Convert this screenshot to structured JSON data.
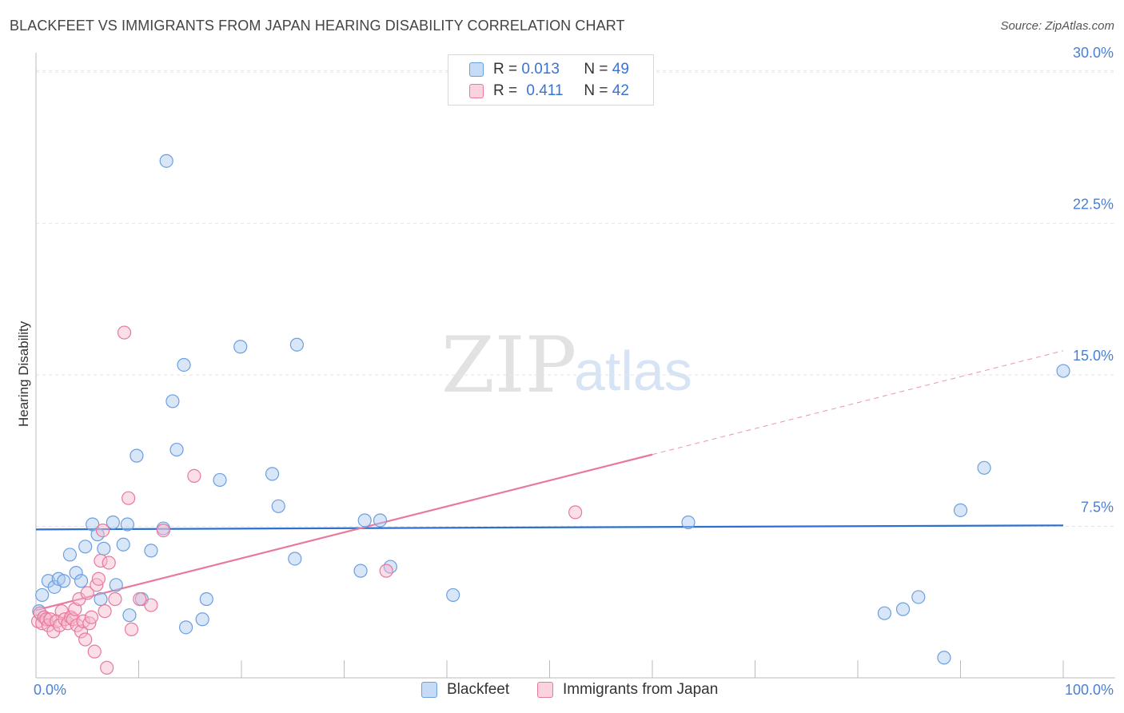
{
  "header": {
    "title": "BLACKFEET VS IMMIGRANTS FROM JAPAN HEARING DISABILITY CORRELATION CHART",
    "source": "Source: ZipAtlas.com"
  },
  "legend": {
    "rows": [
      {
        "r_label": "R =",
        "r_value": "0.013",
        "n_label": "N =",
        "n_value": "49",
        "color": "#a8c8f0"
      },
      {
        "r_label": "R =",
        "r_value": "0.411",
        "n_label": "N =",
        "n_value": "42",
        "color": "#f7b9cb"
      }
    ]
  },
  "bottom_legend": {
    "items": [
      {
        "label": "Blackfeet",
        "color": "#a8c8f0"
      },
      {
        "label": "Immigrants from Japan",
        "color": "#f7b9cb"
      }
    ]
  },
  "watermark": {
    "zip": "ZIP",
    "atlas": "atlas"
  },
  "chart_data": {
    "type": "scatter",
    "title": "BLACKFEET VS IMMIGRANTS FROM JAPAN HEARING DISABILITY CORRELATION CHART",
    "xlabel": "",
    "ylabel": "Hearing Disability",
    "xlim": [
      0,
      100
    ],
    "ylim": [
      0,
      30.8
    ],
    "x_tick_labels": [
      "0.0%",
      "100.0%"
    ],
    "y_ticks": [
      7.5,
      15.0,
      22.5,
      30.0
    ],
    "y_tick_labels": [
      "7.5%",
      "15.0%",
      "22.5%",
      "30.0%"
    ],
    "grid": true,
    "series": [
      {
        "name": "Blackfeet",
        "color": "#6b9fe0",
        "fill": "#a8c8f0",
        "r": "0.013",
        "n": "49",
        "trend": {
          "x0": 0,
          "y0": 7.35,
          "x1": 100,
          "y1": 7.55,
          "dashed_from": null
        },
        "points": [
          [
            0.3,
            3.3
          ],
          [
            0.6,
            4.1
          ],
          [
            1.2,
            4.8
          ],
          [
            1.8,
            4.5
          ],
          [
            2.2,
            4.9
          ],
          [
            2.7,
            4.8
          ],
          [
            3.3,
            6.1
          ],
          [
            3.9,
            5.2
          ],
          [
            4.4,
            4.8
          ],
          [
            4.8,
            6.5
          ],
          [
            5.5,
            7.6
          ],
          [
            6.0,
            7.1
          ],
          [
            6.3,
            3.9
          ],
          [
            6.6,
            6.4
          ],
          [
            7.5,
            7.7
          ],
          [
            7.8,
            4.6
          ],
          [
            8.5,
            6.6
          ],
          [
            8.9,
            7.6
          ],
          [
            9.1,
            3.1
          ],
          [
            9.8,
            11.0
          ],
          [
            10.3,
            3.9
          ],
          [
            11.2,
            6.3
          ],
          [
            12.4,
            7.4
          ],
          [
            12.7,
            25.6
          ],
          [
            13.3,
            13.7
          ],
          [
            13.7,
            11.3
          ],
          [
            14.4,
            15.5
          ],
          [
            14.6,
            2.5
          ],
          [
            16.2,
            2.9
          ],
          [
            16.6,
            3.9
          ],
          [
            17.9,
            9.8
          ],
          [
            19.9,
            16.4
          ],
          [
            23.0,
            10.1
          ],
          [
            23.6,
            8.5
          ],
          [
            25.2,
            5.9
          ],
          [
            25.4,
            16.5
          ],
          [
            31.6,
            5.3
          ],
          [
            32.0,
            7.8
          ],
          [
            33.5,
            7.8
          ],
          [
            34.5,
            5.5
          ],
          [
            40.6,
            4.1
          ],
          [
            63.5,
            7.7
          ],
          [
            82.6,
            3.2
          ],
          [
            84.4,
            3.4
          ],
          [
            85.9,
            4.0
          ],
          [
            88.4,
            1.0
          ],
          [
            90.0,
            8.3
          ],
          [
            92.3,
            10.4
          ],
          [
            100.0,
            15.2
          ]
        ]
      },
      {
        "name": "Immigrants from Japan",
        "color": "#e8789c",
        "fill": "#f7b9cb",
        "r": "0.411",
        "n": "42",
        "trend": {
          "x0": 0,
          "y0": 3.35,
          "x1": 100,
          "y1": 16.2,
          "dashed_from": 60
        },
        "points": [
          [
            0.2,
            2.8
          ],
          [
            0.4,
            3.2
          ],
          [
            0.6,
            2.7
          ],
          [
            0.8,
            3.0
          ],
          [
            1.0,
            2.9
          ],
          [
            1.2,
            2.6
          ],
          [
            1.4,
            2.9
          ],
          [
            1.7,
            2.3
          ],
          [
            2.0,
            2.8
          ],
          [
            2.3,
            2.6
          ],
          [
            2.5,
            3.3
          ],
          [
            2.8,
            2.9
          ],
          [
            3.1,
            2.7
          ],
          [
            3.4,
            3.0
          ],
          [
            3.6,
            2.9
          ],
          [
            3.8,
            3.4
          ],
          [
            4.0,
            2.6
          ],
          [
            4.2,
            3.9
          ],
          [
            4.4,
            2.3
          ],
          [
            4.6,
            2.8
          ],
          [
            4.8,
            1.9
          ],
          [
            5.0,
            4.2
          ],
          [
            5.2,
            2.7
          ],
          [
            5.4,
            3.0
          ],
          [
            5.7,
            1.3
          ],
          [
            5.9,
            4.6
          ],
          [
            6.1,
            4.9
          ],
          [
            6.3,
            5.8
          ],
          [
            6.5,
            7.3
          ],
          [
            6.7,
            3.3
          ],
          [
            6.9,
            0.5
          ],
          [
            7.1,
            5.7
          ],
          [
            7.7,
            3.9
          ],
          [
            8.6,
            17.1
          ],
          [
            9.0,
            8.9
          ],
          [
            9.3,
            2.4
          ],
          [
            10.1,
            3.9
          ],
          [
            11.2,
            3.6
          ],
          [
            12.4,
            7.3
          ],
          [
            15.4,
            10.0
          ],
          [
            34.1,
            5.3
          ],
          [
            52.5,
            8.2
          ]
        ]
      }
    ]
  }
}
